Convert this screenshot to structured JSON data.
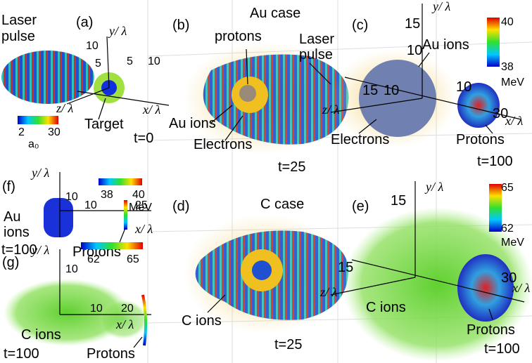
{
  "panels": [
    {
      "label": "(a)",
      "texts": [
        "Laser",
        "pulse",
        "y/ λ",
        "10",
        "5",
        "5",
        "10",
        "z/ λ",
        "x/ λ",
        "Target",
        "t=0",
        "2",
        "30",
        "a₀"
      ]
    },
    {
      "label": "(b)",
      "texts": [
        "Au case",
        "protons",
        "Laser",
        "pulse",
        "Au ions",
        "Electrons",
        "t=25"
      ]
    },
    {
      "label": "(c)",
      "texts": [
        "y/ λ",
        "15",
        "10",
        "40",
        "38",
        "MeV",
        "Au ions",
        "15",
        "10",
        "10",
        "30",
        "z/ λ",
        "x/ λ",
        "Electrons",
        "Protons",
        "t=100"
      ]
    },
    {
      "label": "(d)",
      "texts": [
        "C case",
        "C ions",
        "t=25"
      ]
    },
    {
      "label": "(e)",
      "texts": [
        "y/ λ",
        "15",
        "65",
        "62",
        "MeV",
        "15",
        "30",
        "z/ λ",
        "x/ λ",
        "C ions",
        "Protons",
        "t=100"
      ]
    },
    {
      "label": "(f)",
      "texts": [
        "y/ λ",
        "10",
        "38",
        "40",
        "MeV",
        "Au",
        "ions",
        "10",
        "25",
        "x/ λ",
        "t=100",
        "Protons"
      ]
    },
    {
      "label": "(g)",
      "texts": [
        "y/ λ",
        "10",
        "62",
        "65",
        "10",
        "20",
        "x/ λ",
        "C ions",
        "t=100",
        "Protons"
      ]
    }
  ]
}
